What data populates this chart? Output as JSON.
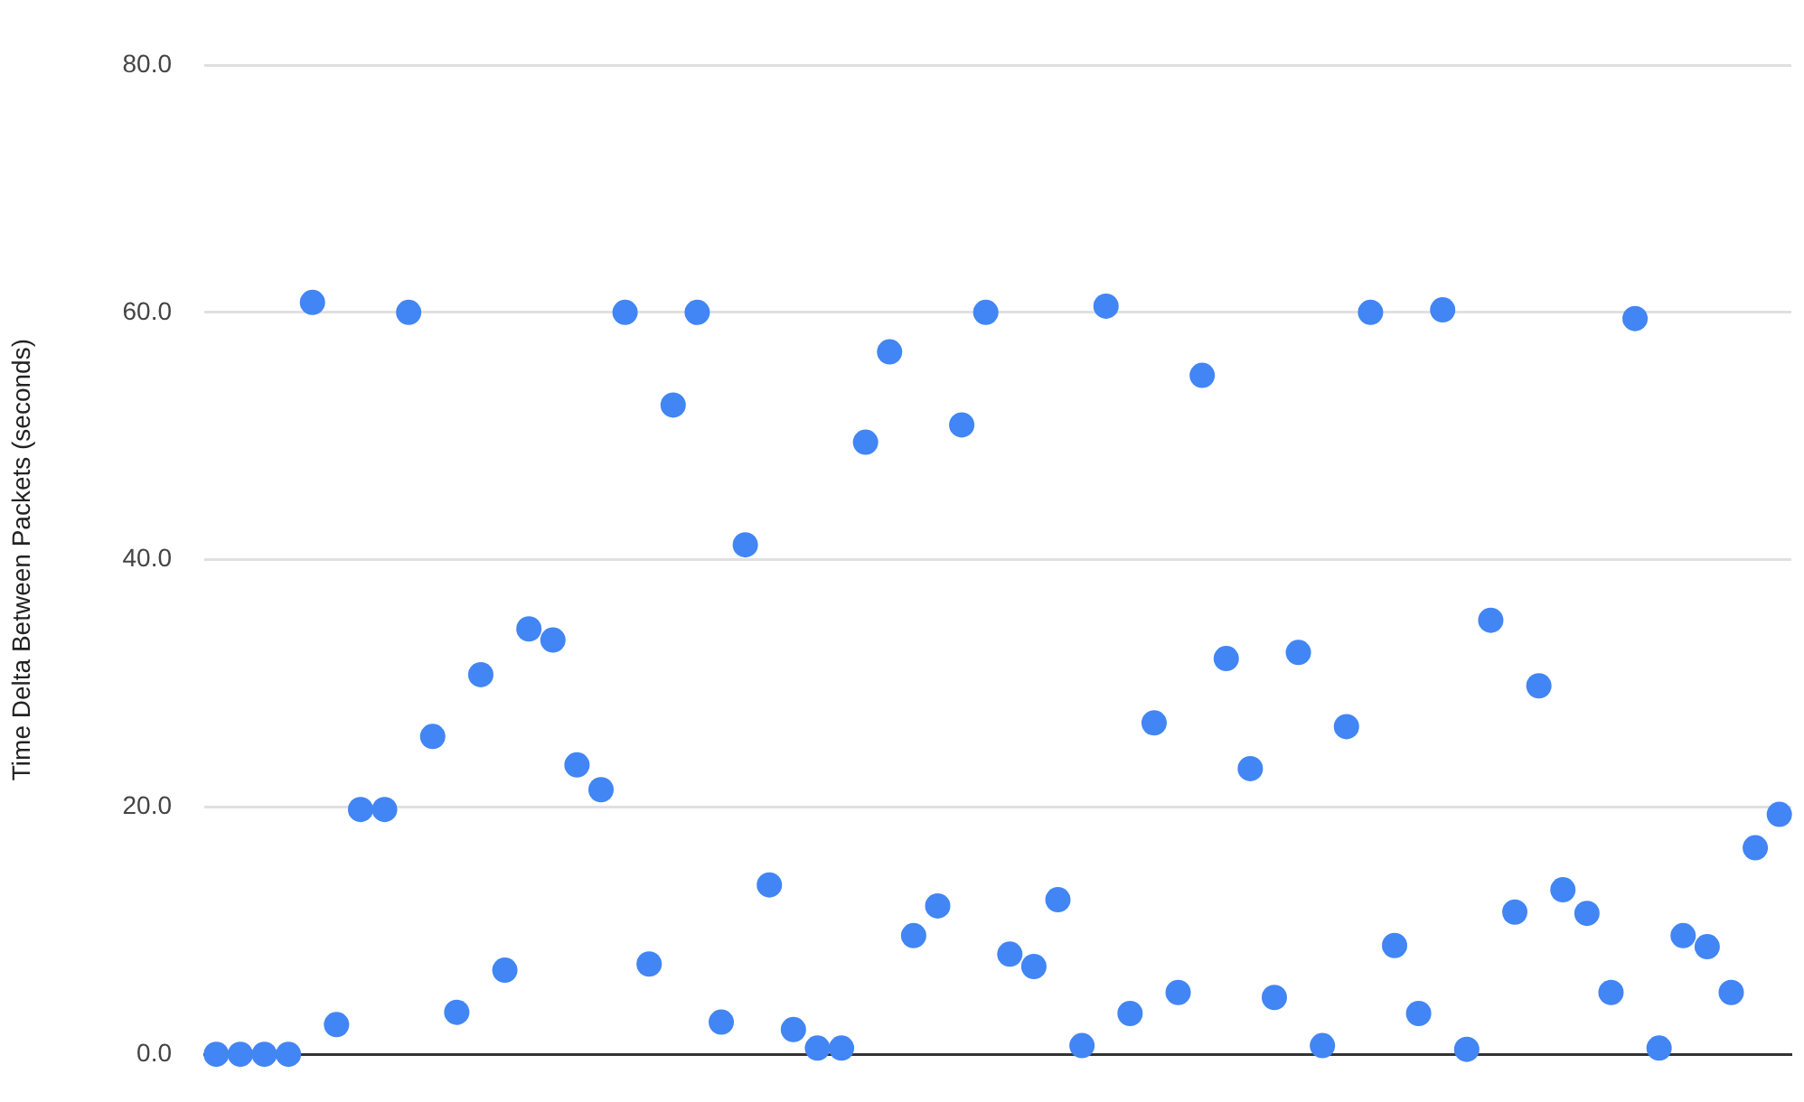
{
  "chart_data": {
    "type": "scatter",
    "ylabel": "Time Delta Between Packets (seconds)",
    "categories": [
      null,
      null,
      null,
      null,
      null,
      null,
      null,
      null,
      null,
      null,
      null,
      null,
      null,
      null,
      null,
      null,
      null,
      null,
      null,
      null,
      null,
      null,
      null,
      null,
      null,
      null,
      null,
      null,
      null,
      null,
      null,
      null,
      null,
      null,
      null,
      null,
      null,
      null,
      null,
      null,
      null,
      null,
      null,
      null,
      null,
      null,
      null,
      null,
      null,
      null,
      null,
      null,
      null,
      null,
      null,
      null,
      null,
      null,
      null,
      null,
      null,
      null,
      null,
      null,
      null,
      null
    ],
    "series": [
      {
        "color": "#4285f4",
        "values": [
          0,
          0,
          0,
          0,
          60.8,
          2.4,
          19.8,
          19.8,
          60,
          25.7,
          3.4,
          30.7,
          6.8,
          34.4,
          33.5,
          23.4,
          21.4,
          60,
          7.3,
          52.5,
          60,
          2.6,
          41.2,
          13.7,
          2,
          0.5,
          0.5,
          49.5,
          56.8,
          9.6,
          12,
          50.9,
          60,
          8.1,
          7.1,
          12.5,
          0.7,
          60.5,
          3.3,
          26.8,
          5,
          54.9,
          32,
          23.1,
          4.6,
          32.5,
          0.7,
          26.5,
          60,
          8.8,
          3.3,
          60.2,
          0.4,
          35.1,
          11.5,
          29.8,
          13.3,
          11.4,
          5,
          59.5,
          0.5,
          9.6,
          8.7,
          5,
          16.7,
          19.4
        ]
      }
    ],
    "ylim": [
      0,
      80
    ],
    "yticks": [
      {
        "value": 0,
        "label": "0.0"
      },
      {
        "value": 20,
        "label": "20.0"
      },
      {
        "value": 40,
        "label": "40.0"
      },
      {
        "value": 60,
        "label": "60.0"
      },
      {
        "value": 80,
        "label": "80.0"
      }
    ],
    "grid": "y",
    "marker": "circle",
    "legend": false,
    "tick_labels": "y"
  }
}
